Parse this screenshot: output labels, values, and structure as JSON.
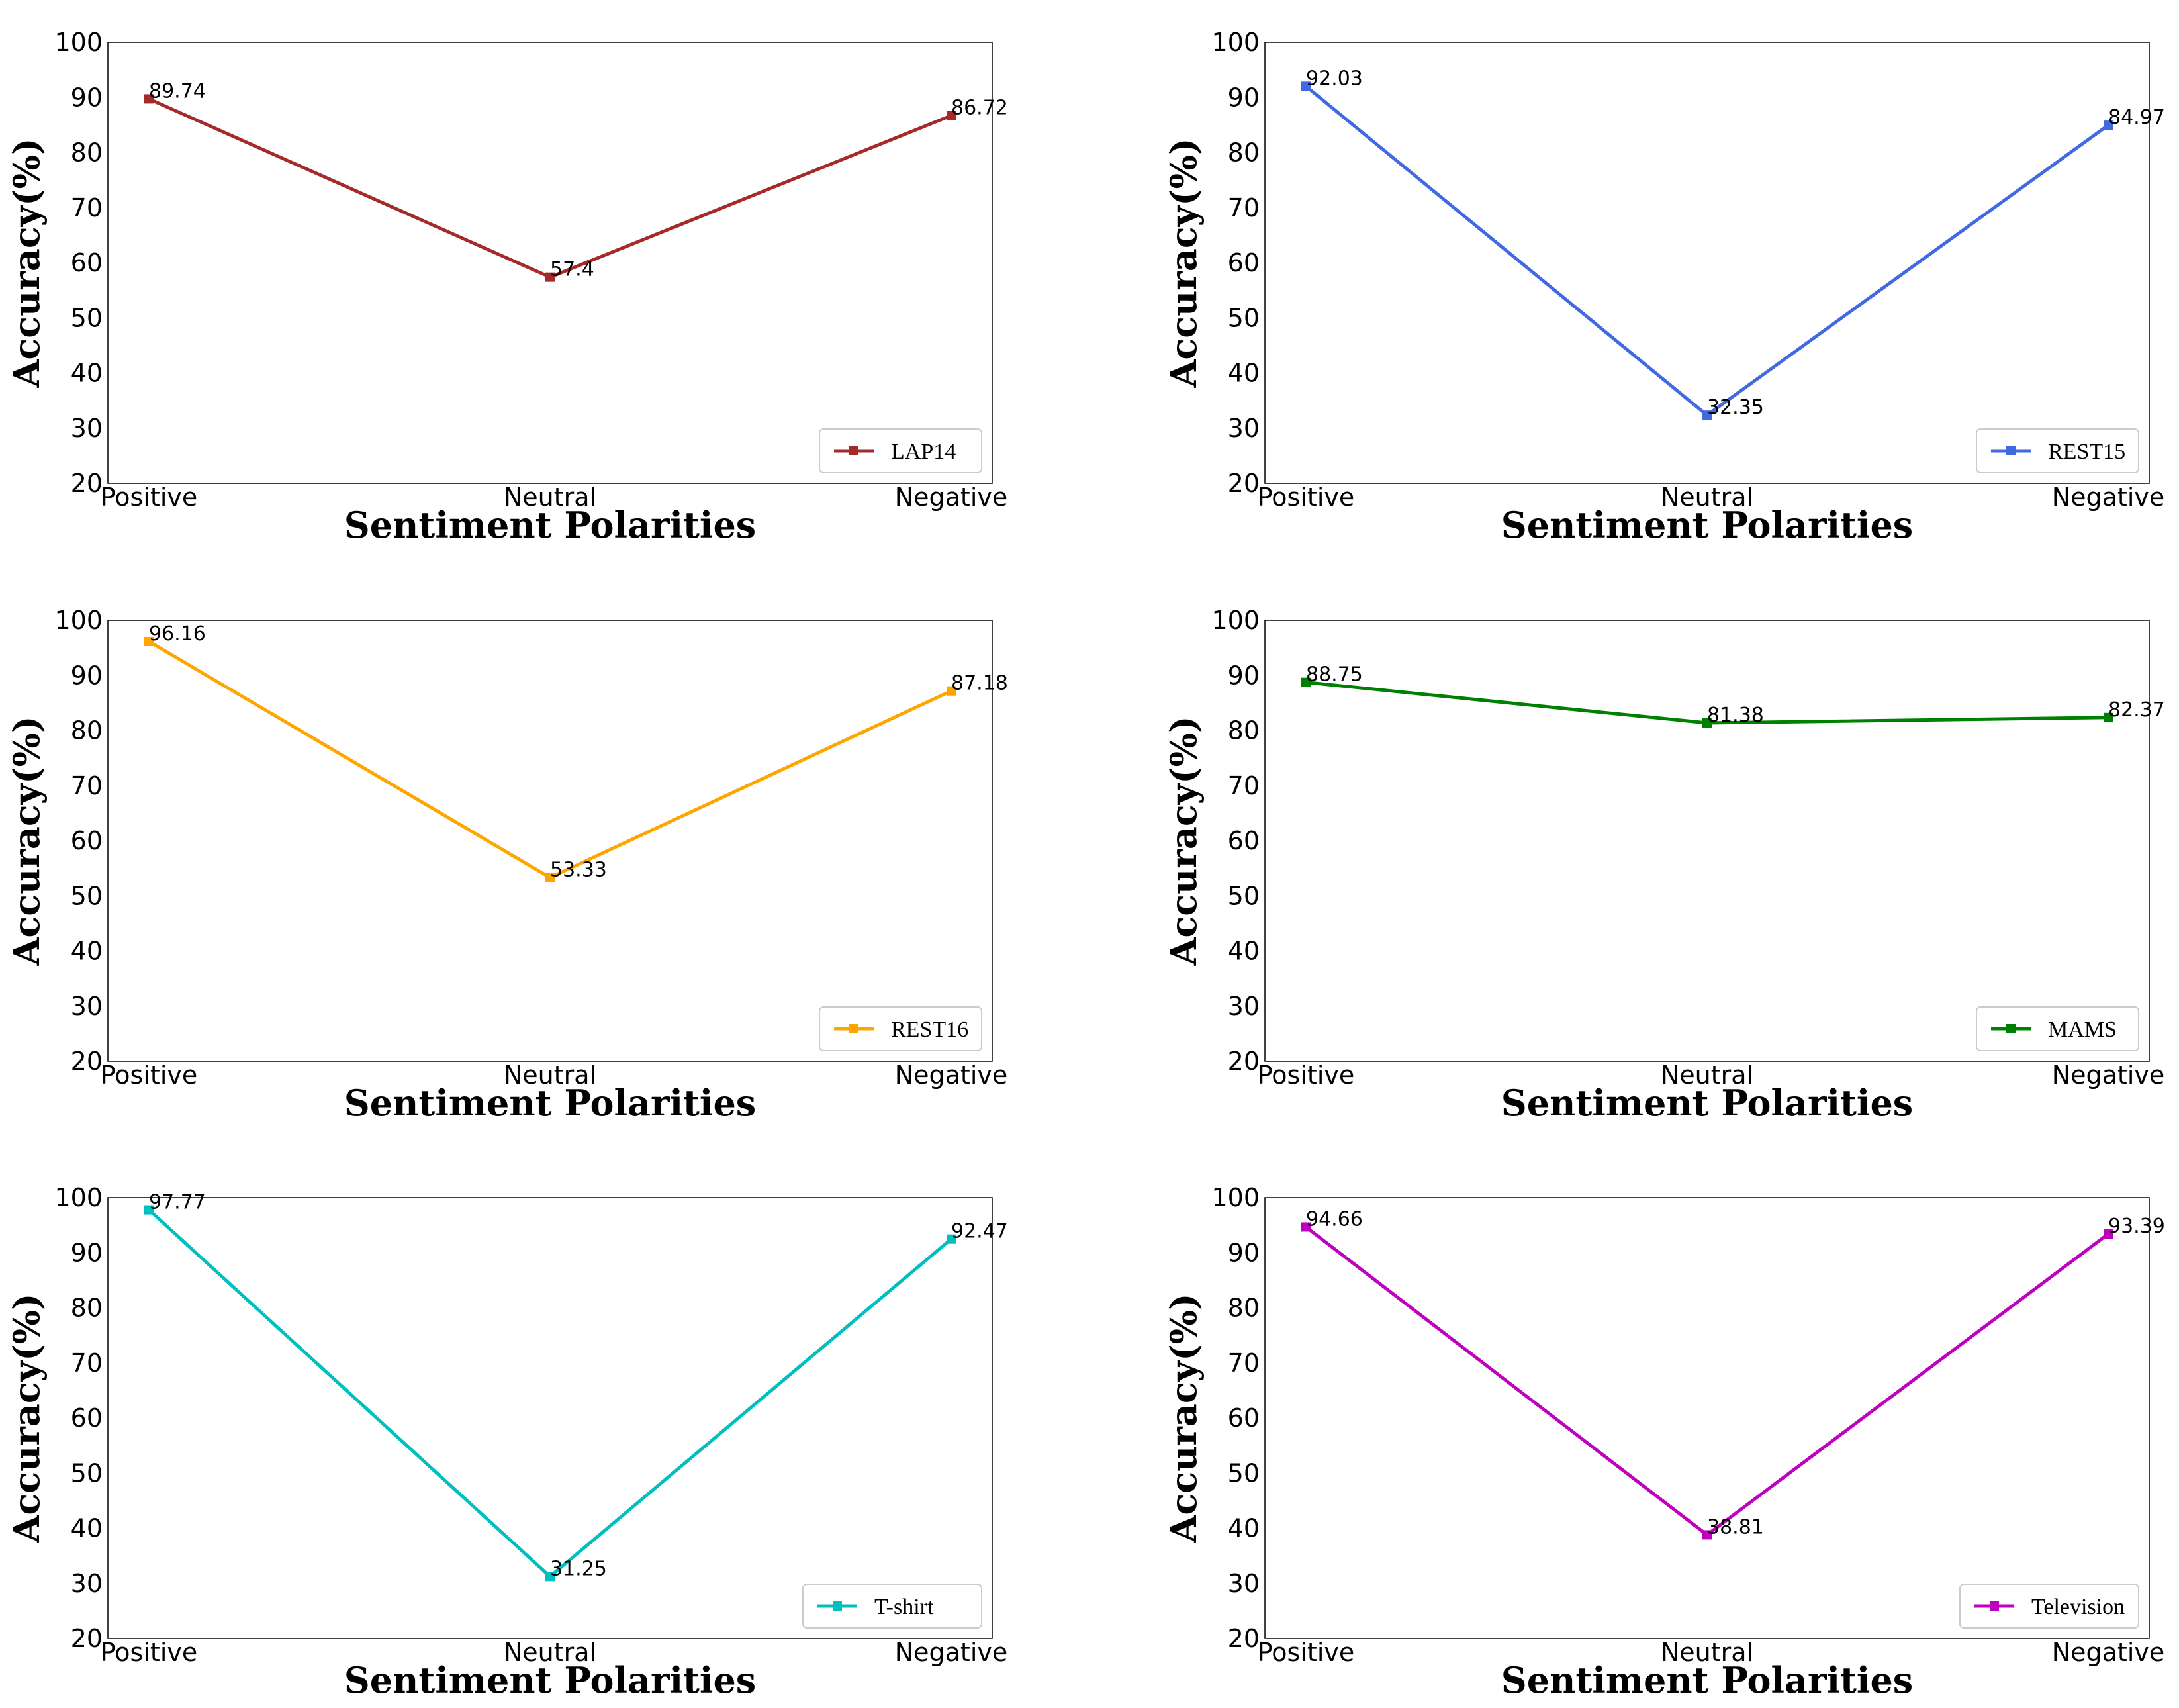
{
  "chart_data": [
    {
      "type": "line",
      "categories": [
        "Positive",
        "Neutral",
        "Negative"
      ],
      "series": [
        {
          "name": "LAP14",
          "values": [
            89.74,
            57.4,
            86.72
          ],
          "labels": [
            "89.74",
            "57.4",
            "86.72"
          ],
          "color": "#a52a2a"
        }
      ],
      "xlabel": "Sentiment Polarities",
      "ylabel": "Accuracy(%)",
      "ylim": [
        20,
        100
      ],
      "yticks": [
        "20",
        "30",
        "40",
        "50",
        "60",
        "70",
        "80",
        "90",
        "100"
      ],
      "legend": "bottom-right"
    },
    {
      "type": "line",
      "categories": [
        "Positive",
        "Neutral",
        "Negative"
      ],
      "series": [
        {
          "name": "REST15",
          "values": [
            92.03,
            32.35,
            84.97
          ],
          "labels": [
            "92.03",
            "32.35",
            "84.97"
          ],
          "color": "#4169e1"
        }
      ],
      "xlabel": "Sentiment Polarities",
      "ylabel": "Accuracy(%)",
      "ylim": [
        20,
        100
      ],
      "yticks": [
        "20",
        "30",
        "40",
        "50",
        "60",
        "70",
        "80",
        "90",
        "100"
      ],
      "legend": "bottom-right"
    },
    {
      "type": "line",
      "categories": [
        "Positive",
        "Neutral",
        "Negative"
      ],
      "series": [
        {
          "name": "REST16",
          "values": [
            96.16,
            53.33,
            87.18
          ],
          "labels": [
            "96.16",
            "53.33",
            "87.18"
          ],
          "color": "#ffa500"
        }
      ],
      "xlabel": "Sentiment Polarities",
      "ylabel": "Accuracy(%)",
      "ylim": [
        20,
        100
      ],
      "yticks": [
        "20",
        "30",
        "40",
        "50",
        "60",
        "70",
        "80",
        "90",
        "100"
      ],
      "legend": "bottom-right"
    },
    {
      "type": "line",
      "categories": [
        "Positive",
        "Neutral",
        "Negative"
      ],
      "series": [
        {
          "name": "MAMS",
          "values": [
            88.75,
            81.38,
            82.37
          ],
          "labels": [
            "88.75",
            "81.38",
            "82.37"
          ],
          "color": "#008000"
        }
      ],
      "xlabel": "Sentiment Polarities",
      "ylabel": "Accuracy(%)",
      "ylim": [
        20,
        100
      ],
      "yticks": [
        "20",
        "30",
        "40",
        "50",
        "60",
        "70",
        "80",
        "90",
        "100"
      ],
      "legend": "bottom-right"
    },
    {
      "type": "line",
      "categories": [
        "Positive",
        "Neutral",
        "Negative"
      ],
      "series": [
        {
          "name": "T-shirt",
          "values": [
            97.77,
            31.25,
            92.47
          ],
          "labels": [
            "97.77",
            "31.25",
            "92.47"
          ],
          "color": "#00bfbf"
        }
      ],
      "xlabel": "Sentiment Polarities",
      "ylabel": "Accuracy(%)",
      "ylim": [
        20,
        100
      ],
      "yticks": [
        "20",
        "30",
        "40",
        "50",
        "60",
        "70",
        "80",
        "90",
        "100"
      ],
      "legend": "bottom-right"
    },
    {
      "type": "line",
      "categories": [
        "Positive",
        "Neutral",
        "Negative"
      ],
      "series": [
        {
          "name": "Television",
          "values": [
            94.66,
            38.81,
            93.39
          ],
          "labels": [
            "94.66",
            "38.81",
            "93.39"
          ],
          "color": "#bf00bf"
        }
      ],
      "xlabel": "Sentiment Polarities",
      "ylabel": "Accuracy(%)",
      "ylim": [
        20,
        100
      ],
      "yticks": [
        "20",
        "30",
        "40",
        "50",
        "60",
        "70",
        "80",
        "90",
        "100"
      ],
      "legend": "bottom-right"
    }
  ]
}
